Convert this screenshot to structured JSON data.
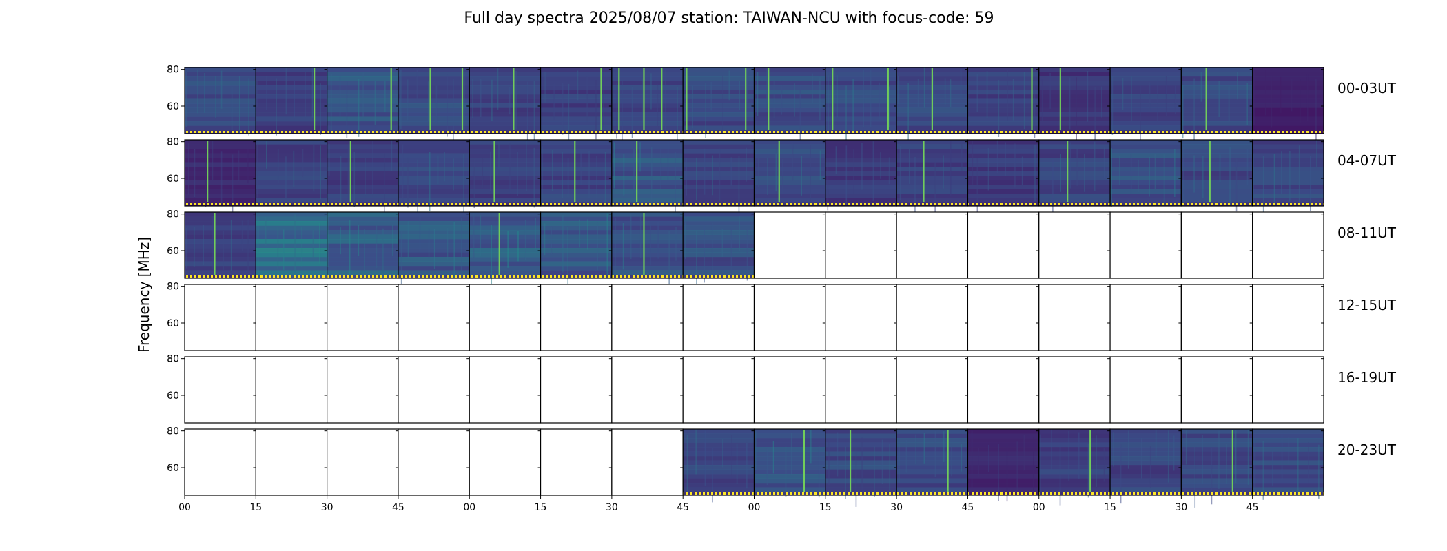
{
  "chart_data": {
    "type": "heatmap",
    "title": "Full day spectra 2025/08/07 station: TAIWAN-NCU with focus-code: 59",
    "ylabel": "Frequency [MHz]",
    "ylim": [
      45,
      81
    ],
    "yticks": [
      "80",
      "60"
    ],
    "ytick_values": [
      80,
      60
    ],
    "xtick_labels": [
      "00",
      "15",
      "30",
      "45",
      "00",
      "15",
      "30",
      "45",
      "00",
      "15",
      "30",
      "45",
      "00",
      "15",
      "30",
      "45"
    ],
    "panels_per_row": 16,
    "grid": false,
    "colormap": "viridis",
    "marker_line_color": "#fde725",
    "rows": [
      {
        "label": "00-03UT",
        "panels": [
          1,
          1,
          1,
          1,
          1,
          1,
          1,
          1,
          1,
          1,
          1,
          1,
          1,
          1,
          1,
          1
        ],
        "intensity": [
          0.35,
          0.3,
          0.4,
          0.35,
          0.32,
          0.3,
          0.33,
          0.35,
          0.38,
          0.36,
          0.34,
          0.3,
          0.25,
          0.3,
          0.34,
          0.15
        ],
        "bright_lines": [
          [],
          [
            0.82
          ],
          [
            0.9
          ],
          [
            0.45,
            0.9
          ],
          [
            0.62
          ],
          [
            0.85
          ],
          [
            0.1,
            0.45,
            0.7
          ],
          [
            0.05,
            0.88
          ],
          [
            0.2
          ],
          [
            0.1,
            0.88
          ],
          [
            0.5
          ],
          [
            0.9
          ],
          [
            0.3
          ],
          [],
          [
            0.35
          ],
          []
        ]
      },
      {
        "label": "04-07UT",
        "panels": [
          1,
          1,
          1,
          1,
          1,
          1,
          1,
          1,
          1,
          1,
          1,
          1,
          1,
          1,
          1,
          1
        ],
        "intensity": [
          0.2,
          0.32,
          0.3,
          0.36,
          0.3,
          0.33,
          0.42,
          0.32,
          0.35,
          0.28,
          0.3,
          0.28,
          0.32,
          0.38,
          0.35,
          0.34
        ],
        "bright_lines": [
          [
            0.32
          ],
          [],
          [
            0.33
          ],
          [],
          [
            0.35
          ],
          [
            0.48
          ],
          [
            0.35
          ],
          [],
          [
            0.35
          ],
          [],
          [
            0.38
          ],
          [],
          [
            0.4
          ],
          [],
          [
            0.4
          ],
          []
        ]
      },
      {
        "label": "08-11UT",
        "panels": [
          1,
          1,
          1,
          1,
          1,
          1,
          1,
          1,
          0,
          0,
          0,
          0,
          0,
          0,
          0,
          0
        ],
        "intensity": [
          0.3,
          0.55,
          0.45,
          0.42,
          0.45,
          0.42,
          0.4,
          0.38,
          0,
          0,
          0,
          0,
          0,
          0,
          0,
          0
        ],
        "bright_lines": [
          [
            0.42
          ],
          [],
          [],
          [],
          [
            0.42
          ],
          [],
          [
            0.45
          ],
          [],
          [],
          [],
          [],
          [],
          [],
          [],
          [],
          []
        ]
      },
      {
        "label": "12-15UT",
        "panels": [
          0,
          0,
          0,
          0,
          0,
          0,
          0,
          0,
          0,
          0,
          0,
          0,
          0,
          0,
          0,
          0
        ],
        "intensity": [
          0,
          0,
          0,
          0,
          0,
          0,
          0,
          0,
          0,
          0,
          0,
          0,
          0,
          0,
          0,
          0
        ],
        "bright_lines": [
          [],
          [],
          [],
          [],
          [],
          [],
          [],
          [],
          [],
          [],
          [],
          [],
          [],
          [],
          [],
          []
        ]
      },
      {
        "label": "16-19UT",
        "panels": [
          0,
          0,
          0,
          0,
          0,
          0,
          0,
          0,
          0,
          0,
          0,
          0,
          0,
          0,
          0,
          0
        ],
        "intensity": [
          0,
          0,
          0,
          0,
          0,
          0,
          0,
          0,
          0,
          0,
          0,
          0,
          0,
          0,
          0,
          0
        ],
        "bright_lines": [
          [],
          [],
          [],
          [],
          [],
          [],
          [],
          [],
          [],
          [],
          [],
          [],
          [],
          [],
          [],
          []
        ]
      },
      {
        "label": "20-23UT",
        "panels": [
          0,
          0,
          0,
          0,
          0,
          0,
          0,
          1,
          1,
          1,
          1,
          1,
          1,
          1,
          1,
          1
        ],
        "intensity": [
          0,
          0,
          0,
          0,
          0,
          0,
          0,
          0.32,
          0.4,
          0.34,
          0.36,
          0.18,
          0.3,
          0.32,
          0.34,
          0.34
        ],
        "bright_lines": [
          [],
          [],
          [],
          [],
          [],
          [],
          [],
          [],
          [
            0.7
          ],
          [
            0.35
          ],
          [
            0.72
          ],
          [],
          [
            0.72
          ],
          [],
          [
            0.72
          ],
          []
        ]
      }
    ]
  }
}
